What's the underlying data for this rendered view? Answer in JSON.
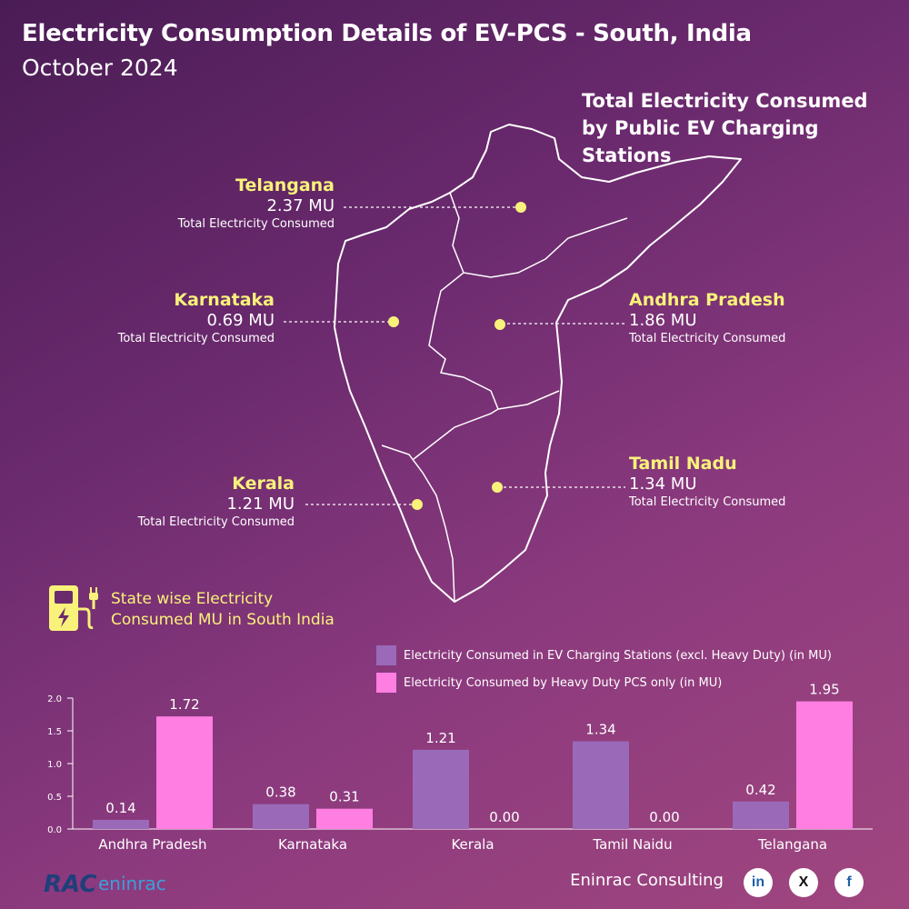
{
  "header": {
    "title": "Electricity Consumption Details of EV-PCS - South, India",
    "subtitle": "October 2024"
  },
  "map": {
    "caption": "Total Electricity Consumed by Public EV Charging Stations",
    "states": [
      {
        "name": "Telangana",
        "value": "2.37 MU",
        "desc": "Total Electricity Consumed"
      },
      {
        "name": "Karnataka",
        "value": "0.69 MU",
        "desc": "Total Electricity Consumed"
      },
      {
        "name": "Andhra Pradesh",
        "value": "1.86 MU",
        "desc": "Total Electricity Consumed"
      },
      {
        "name": "Kerala",
        "value": "1.21 MU",
        "desc": "Total Electricity Consumed"
      },
      {
        "name": "Tamil Nadu",
        "value": "1.34 MU",
        "desc": "Total Electricity Consumed"
      }
    ],
    "marker_color": "#f9f27a"
  },
  "section": {
    "title_line1": "State wise Electricity",
    "title_line2": "Consumed MU in South India",
    "icon": "ev-charger-icon"
  },
  "chart_data": {
    "type": "bar",
    "categories": [
      "Andhra Pradesh",
      "Karnataka",
      "Kerala",
      "Tamil Naidu",
      "Telangana"
    ],
    "series": [
      {
        "name": "Electricity Consumed in EV Charging Stations (excl. Heavy Duty) (in MU)",
        "values": [
          0.14,
          0.38,
          1.21,
          1.34,
          0.42
        ],
        "labels": [
          "0.14",
          "0.38",
          "1.21",
          "1.34",
          "0.42"
        ],
        "color": "#9a6ab8"
      },
      {
        "name": "Electricity Consumed by Heavy Duty PCS only (in MU)",
        "values": [
          1.72,
          0.31,
          0.0,
          0.0,
          1.95
        ],
        "labels": [
          "1.72",
          "0.31",
          "0.00",
          "0.00",
          "1.95"
        ],
        "color": "#ff7ee2"
      }
    ],
    "ylim": [
      0,
      2.0
    ],
    "yticks": [
      "0.0",
      "0.5",
      "1.0",
      "1.5",
      "2.0"
    ],
    "grid": false,
    "legend": "top-right"
  },
  "footer": {
    "logo_text": "RAC eninrac",
    "brand": "Eninrac Consulting",
    "social": [
      "in",
      "X",
      "f"
    ]
  }
}
